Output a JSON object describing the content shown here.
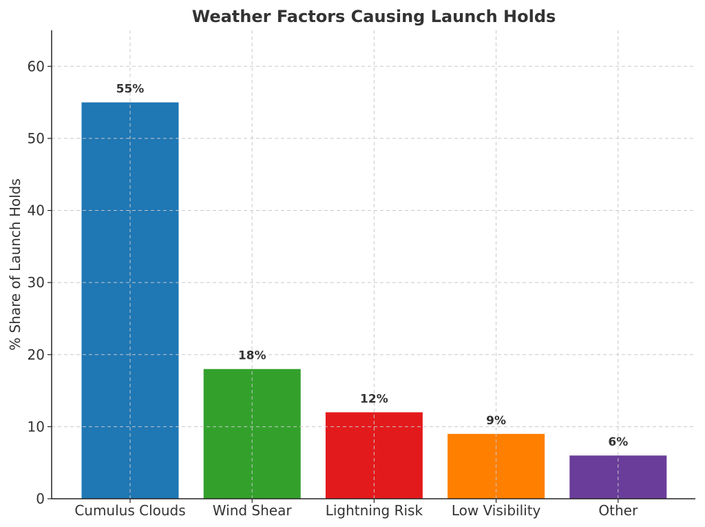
{
  "chart_data": {
    "type": "bar",
    "title": "Weather Factors Causing Launch Holds",
    "xlabel": "",
    "ylabel": "% Share of Launch Holds",
    "categories": [
      "Cumulus Clouds",
      "Wind Shear",
      "Lightning Risk",
      "Low Visibility",
      "Other"
    ],
    "values": [
      55,
      18,
      12,
      9,
      6
    ],
    "value_labels": [
      "55%",
      "18%",
      "12%",
      "9%",
      "6%"
    ],
    "colors": [
      "#1f77b4",
      "#33a02c",
      "#e31a1c",
      "#ff7f00",
      "#6a3d9a"
    ],
    "ylim": [
      0,
      65
    ],
    "yticks": [
      0,
      10,
      20,
      30,
      40,
      50,
      60
    ],
    "grid": true,
    "legend": "none"
  }
}
